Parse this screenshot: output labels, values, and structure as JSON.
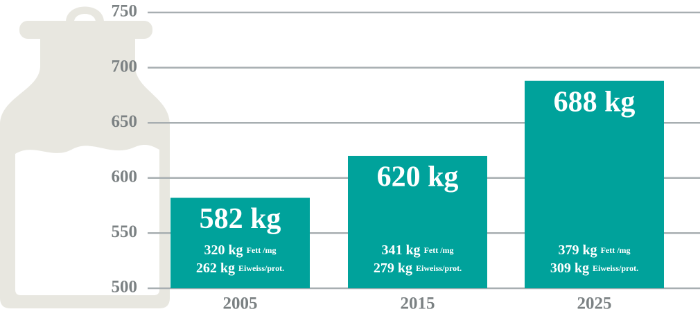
{
  "chart_data": {
    "type": "bar",
    "categories": [
      "2005",
      "2015",
      "2025"
    ],
    "values": [
      582,
      620,
      688
    ],
    "value_labels": [
      "582 kg",
      "620 kg",
      "688 kg"
    ],
    "fat": {
      "label": "Fett /mg",
      "values": [
        320,
        341,
        379
      ],
      "value_labels": [
        "320 kg",
        "341 kg",
        "379 kg"
      ]
    },
    "protein": {
      "label": "Eiweiss/prot.",
      "values": [
        262,
        279,
        309
      ],
      "value_labels": [
        "262 kg",
        "279 kg",
        "309 kg"
      ]
    },
    "color": "#00a29b",
    "ylim": [
      500,
      750
    ],
    "yticks": [
      500,
      550,
      600,
      650,
      700,
      750
    ],
    "grid": true
  }
}
